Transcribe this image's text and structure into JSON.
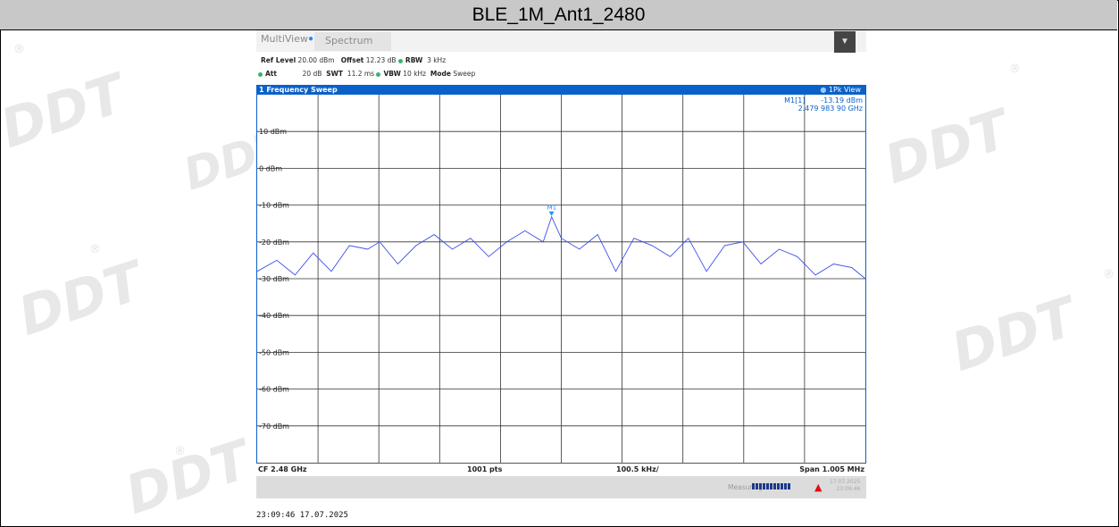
{
  "title": "BLE_1M_Ant1_2480",
  "watermark": {
    "text": "DDT",
    "registered": "®"
  },
  "analyzer": {
    "tabs": {
      "multiview": "MultiView",
      "spectrum": "Spectrum"
    },
    "params": {
      "ref_level_label": "Ref Level",
      "ref_level": "20.00 dBm",
      "offset_label": "Offset",
      "offset": "12.23 dB",
      "rbw_label": "RBW",
      "rbw": "3 kHz",
      "att_label": "Att",
      "att": "20 dB",
      "swt_label": "SWT",
      "swt": "11.2 ms",
      "vbw_label": "VBW",
      "vbw": "10 kHz",
      "mode_label": "Mode",
      "mode": "Sweep"
    },
    "sweep_title": "1 Frequency Sweep",
    "view": "1Pk View",
    "marker": {
      "name": "M1[1]",
      "level": "-13.19 dBm",
      "freq": "2.479 983 90 GHz",
      "label": "M1"
    },
    "footer": {
      "cf": "CF 2.48 GHz",
      "pts": "1001 pts",
      "div": "100.5 kHz/",
      "span": "Span 1.005 MHz"
    },
    "status": {
      "measuring": "Measuring...",
      "date": "17.07.2025",
      "time": "23:09:46"
    },
    "timestamp": "23:09:46  17.07.2025"
  },
  "chart_data": {
    "type": "line",
    "y_tick_labels": [
      "10 dBm",
      "0 dBm",
      "-10 dBm",
      "-20 dBm",
      "-30 dBm",
      "-40 dBm",
      "-50 dBm",
      "-60 dBm",
      "-70 dBm"
    ],
    "ylim": [
      -80,
      20
    ],
    "xlim_MHz": [
      2479.4975,
      2480.5025
    ],
    "grid": true,
    "x_divisions": 10,
    "series": [
      {
        "color": "#3d50e8",
        "x": [
          2479.4975,
          2479.53,
          2479.56,
          2479.59,
          2479.62,
          2479.65,
          2479.68,
          2479.7,
          2479.73,
          2479.76,
          2479.79,
          2479.82,
          2479.85,
          2479.88,
          2479.91,
          2479.94,
          2479.97,
          2479.984,
          2480.0,
          2480.03,
          2480.06,
          2480.09,
          2480.12,
          2480.15,
          2480.18,
          2480.21,
          2480.24,
          2480.27,
          2480.3,
          2480.33,
          2480.36,
          2480.39,
          2480.42,
          2480.45,
          2480.48,
          2480.5025
        ],
        "y": [
          -28,
          -25,
          -29,
          -23,
          -28,
          -21,
          -22,
          -20,
          -26,
          -21,
          -18,
          -22,
          -19,
          -24,
          -20,
          -17,
          -20,
          -13.19,
          -19,
          -22,
          -18,
          -28,
          -19,
          -21,
          -24,
          -19,
          -28,
          -21,
          -20,
          -26,
          -22,
          -24,
          -29,
          -26,
          -27,
          -30
        ]
      }
    ],
    "marker": {
      "x": 2479.9839,
      "y": -13.19,
      "label": "M1"
    }
  }
}
